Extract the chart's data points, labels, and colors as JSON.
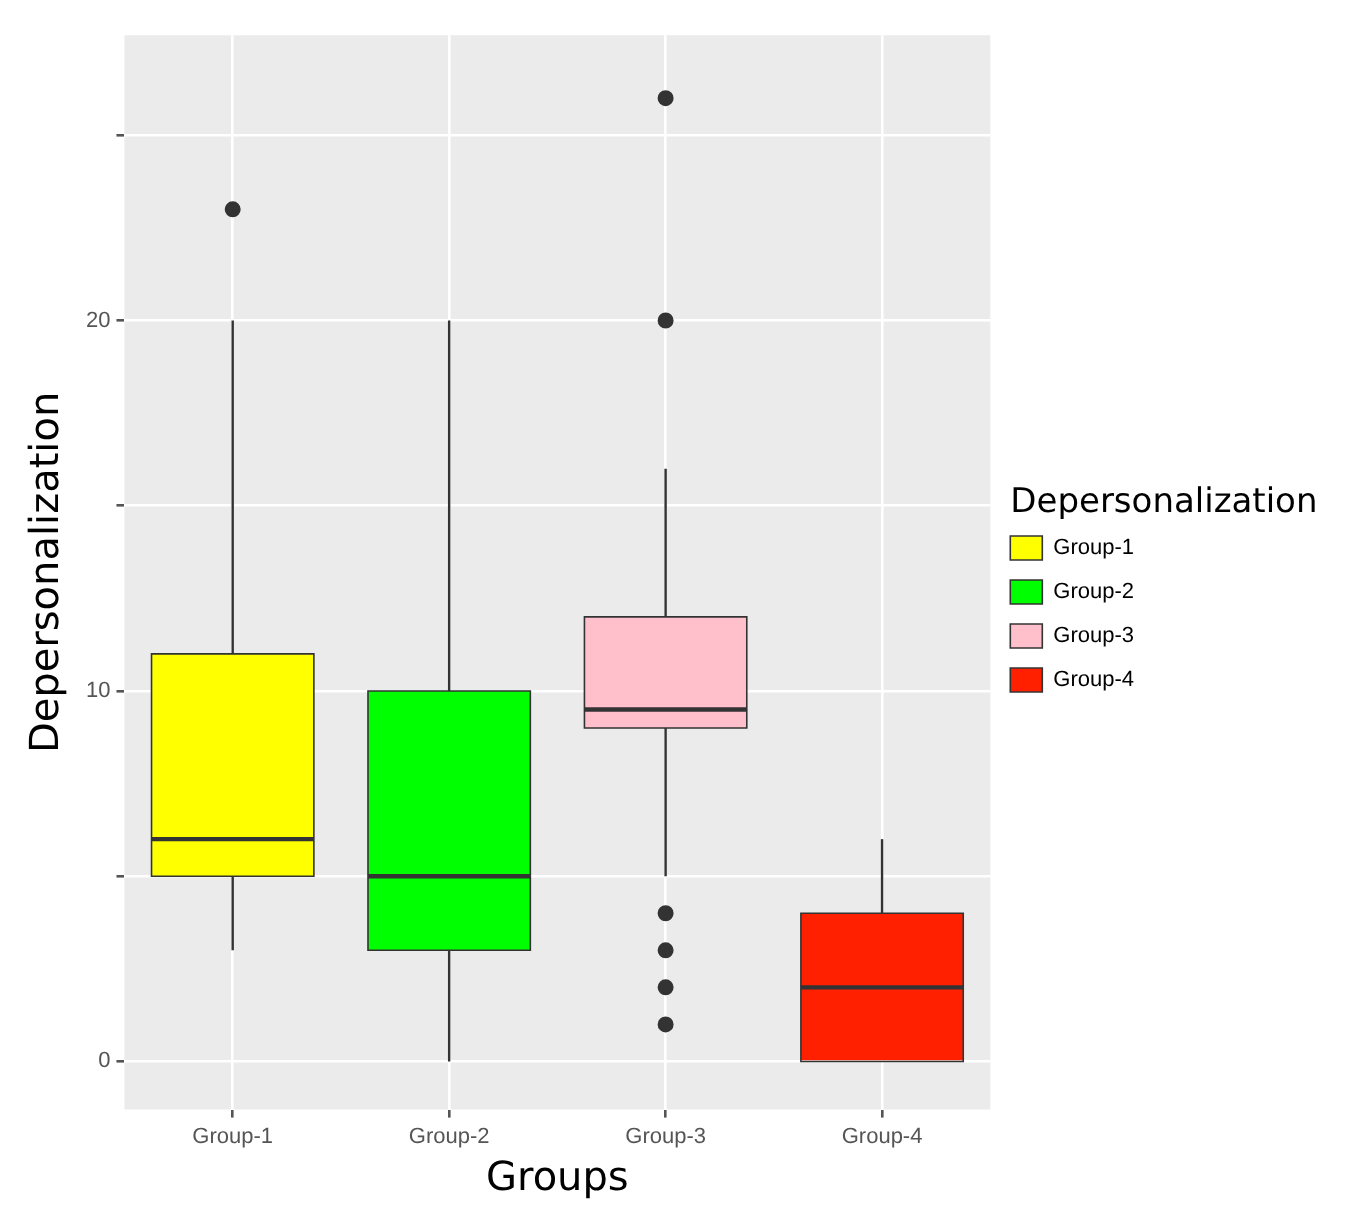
{
  "chart_data": {
    "type": "box",
    "xlabel": "Groups",
    "ylabel": "Depersonalization",
    "legend_title": "Depersonalization",
    "categories": [
      "Group-1",
      "Group-2",
      "Group-3",
      "Group-4"
    ],
    "series": [
      {
        "name": "Group-1",
        "color": "#ffff00",
        "boxes": [
          {
            "low": 3,
            "q1": 5,
            "median": 6,
            "q3": 11,
            "high": 20,
            "outliers": [
              23
            ]
          },
          null,
          null,
          null
        ]
      },
      {
        "name": "Group-2",
        "color": "#00ff00",
        "boxes": [
          null,
          {
            "low": 0,
            "q1": 3,
            "median": 5,
            "q3": 10,
            "high": 20
          },
          null,
          null
        ]
      },
      {
        "name": "Group-3",
        "color": "#ffc0cb",
        "boxes": [
          null,
          null,
          {
            "low": 5,
            "q1": 9,
            "median": 9.5,
            "q3": 12,
            "high": 16,
            "outliers": [
              26,
              20,
              4,
              3,
              2,
              1
            ]
          },
          null
        ]
      },
      {
        "name": "Group-4",
        "color": "#ff2000",
        "boxes": [
          null,
          null,
          null,
          {
            "low": 0,
            "q1": 0,
            "median": 2,
            "q3": 4,
            "high": 6
          }
        ]
      }
    ],
    "ylim": [
      -1.3,
      27.7
    ],
    "yticks": [
      0,
      {
        "value": 5,
        "label": null
      },
      10,
      {
        "value": 15,
        "label": null
      },
      20,
      {
        "value": 25,
        "label": null
      }
    ],
    "grid": true,
    "legend": "right"
  }
}
